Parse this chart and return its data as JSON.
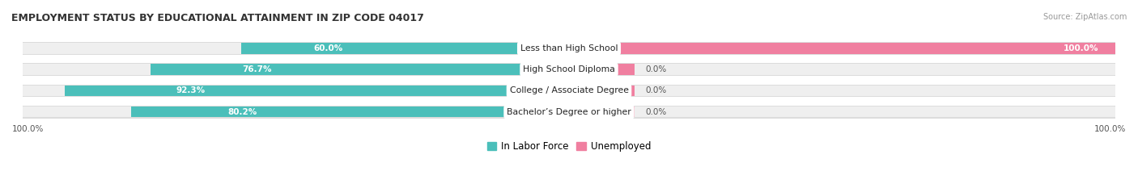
{
  "title": "EMPLOYMENT STATUS BY EDUCATIONAL ATTAINMENT IN ZIP CODE 04017",
  "source": "Source: ZipAtlas.com",
  "categories": [
    "Less than High School",
    "High School Diploma",
    "College / Associate Degree",
    "Bachelor’s Degree or higher"
  ],
  "in_labor_force": [
    60.0,
    76.7,
    92.3,
    80.2
  ],
  "unemployed": [
    100.0,
    0.0,
    0.0,
    0.0
  ],
  "unemployed_display": [
    100.0,
    0.0,
    0.0,
    0.0
  ],
  "pink_stub": [
    12.0,
    12.0,
    12.0
  ],
  "bottom_left_label": "100.0%",
  "bottom_right_label": "100.0%",
  "teal_color": "#4BBFBA",
  "pink_color": "#F07FA0",
  "bar_bg_color": "#DCDCDC",
  "bar_bg_inner": "#EFEFEF",
  "bar_height": 0.52,
  "title_fontsize": 9.0,
  "label_fontsize": 7.5,
  "category_fontsize": 7.8,
  "legend_fontsize": 8.5,
  "source_fontsize": 7.0
}
